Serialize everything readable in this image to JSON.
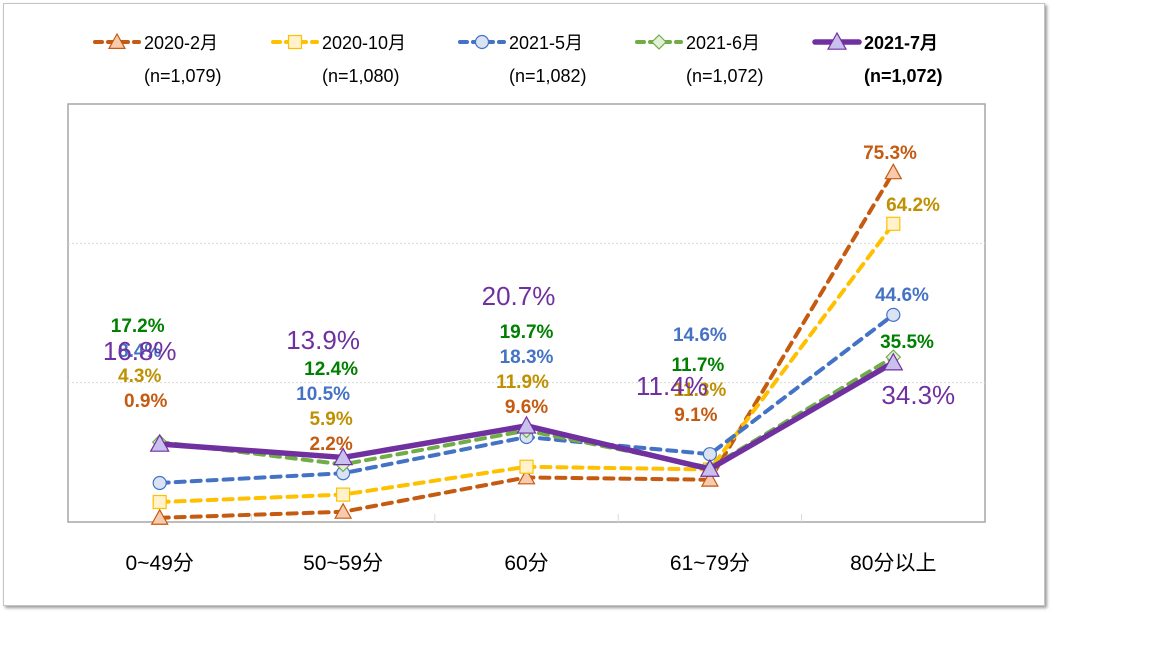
{
  "chart_data": {
    "type": "line",
    "title": "",
    "xlabel": "",
    "ylabel": "",
    "ylim": [
      0,
      90
    ],
    "grid": true,
    "legend_position": "top",
    "categories": [
      "0~49分",
      "50~59分",
      "60分",
      "61~79分",
      "80分以上"
    ],
    "series": [
      {
        "name": "2020-2月",
        "n": "(n=1,079)",
        "color": "#c55a11",
        "label_color": "#c55a11",
        "fill": "#f8cbad",
        "marker": "triangle",
        "dash": true,
        "values": [
          0.9,
          2.2,
          9.6,
          9.1,
          75.3
        ],
        "labels": [
          "0.9%",
          "2.2%",
          "9.6%",
          "9.1%",
          "75.3%"
        ]
      },
      {
        "name": "2020-10月",
        "n": "(n=1,080)",
        "color": "#ffc000",
        "label_color": "#bf9000",
        "fill": "#fff2cc",
        "marker": "square",
        "dash": true,
        "values": [
          4.3,
          5.9,
          11.9,
          11.3,
          64.2
        ],
        "labels": [
          "4.3%",
          "5.9%",
          "11.9%",
          "11.3%",
          "64.2%"
        ]
      },
      {
        "name": "2021-5月",
        "n": "(n=1,082)",
        "color": "#4472c4",
        "label_color": "#4472c4",
        "fill": "#dae3f3",
        "marker": "circle",
        "dash": true,
        "values": [
          8.4,
          10.5,
          18.3,
          14.6,
          44.6
        ],
        "labels": [
          "8.4%",
          "10.5%",
          "18.3%",
          "14.6%",
          "44.6%"
        ]
      },
      {
        "name": "2021-6月",
        "n": "(n=1,072)",
        "color": "#70ad47",
        "label_color": "#008000",
        "fill": "#e2f0d9",
        "marker": "diamond",
        "dash": true,
        "values": [
          17.2,
          12.4,
          19.7,
          11.7,
          35.5
        ],
        "labels": [
          "17.2%",
          "12.4%",
          "19.7%",
          "11.7%",
          "35.5%"
        ]
      },
      {
        "name": "2021-7月",
        "n": "(n=1,072)",
        "color": "#7030a0",
        "label_color": "#7030a0",
        "fill": "#c9c0ee",
        "marker": "triangle",
        "dash": false,
        "bold": true,
        "values": [
          16.8,
          13.9,
          20.7,
          11.4,
          34.3
        ],
        "labels": [
          "16.8%",
          "13.9%",
          "20.7%",
          "11.4%",
          "34.3%"
        ]
      }
    ]
  }
}
